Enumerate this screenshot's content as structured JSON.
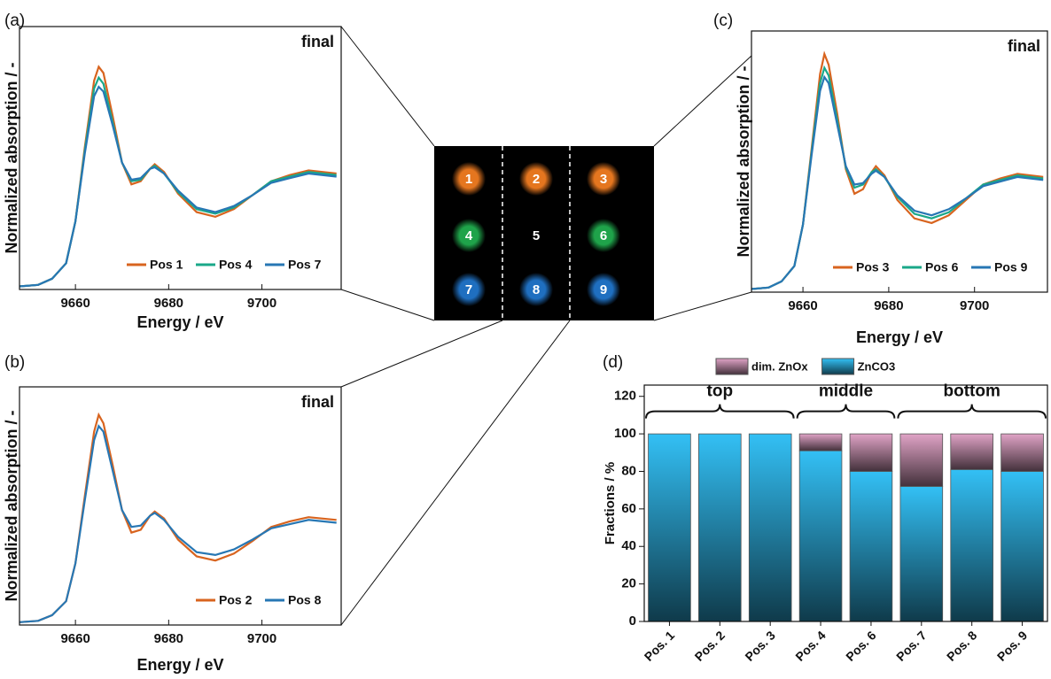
{
  "chart_data": [
    {
      "type": "line",
      "label": "(a)",
      "annotation": "final",
      "x_label": "Energy / eV",
      "y_label": "Normalized absorption / -",
      "x": [
        9648,
        9652,
        9655,
        9658,
        9660,
        9662,
        9664,
        9665,
        9666,
        9668,
        9670,
        9672,
        9674,
        9676,
        9677,
        9679,
        9682,
        9686,
        9690,
        9694,
        9698,
        9702,
        9706,
        9710,
        9716
      ],
      "series": [
        {
          "name": "Pos 1",
          "color": "#d8641f",
          "values": [
            0.02,
            0.03,
            0.07,
            0.17,
            0.44,
            0.92,
            1.35,
            1.44,
            1.4,
            1.12,
            0.82,
            0.68,
            0.7,
            0.78,
            0.81,
            0.76,
            0.62,
            0.5,
            0.47,
            0.52,
            0.61,
            0.7,
            0.74,
            0.77,
            0.75
          ]
        },
        {
          "name": "Pos 4",
          "color": "#1aa889",
          "values": [
            0.02,
            0.03,
            0.07,
            0.17,
            0.44,
            0.9,
            1.3,
            1.37,
            1.33,
            1.08,
            0.82,
            0.7,
            0.71,
            0.78,
            0.8,
            0.75,
            0.63,
            0.52,
            0.49,
            0.53,
            0.61,
            0.7,
            0.73,
            0.76,
            0.74
          ]
        },
        {
          "name": "Pos 7",
          "color": "#2777b4",
          "values": [
            0.02,
            0.03,
            0.07,
            0.17,
            0.44,
            0.88,
            1.25,
            1.31,
            1.28,
            1.06,
            0.82,
            0.71,
            0.72,
            0.78,
            0.79,
            0.75,
            0.64,
            0.53,
            0.5,
            0.54,
            0.61,
            0.69,
            0.72,
            0.75,
            0.73
          ]
        }
      ],
      "xlim": [
        9648,
        9717
      ],
      "ylim": [
        0,
        1.7
      ],
      "xticks": [
        9660,
        9680,
        9700
      ],
      "legend": "lower right"
    },
    {
      "type": "line",
      "label": "(b)",
      "annotation": "final",
      "x_label": "Energy / eV",
      "y_label": "Normalized absorption / -",
      "x": [
        9648,
        9652,
        9655,
        9658,
        9660,
        9662,
        9664,
        9665,
        9666,
        9668,
        9670,
        9672,
        9674,
        9676,
        9677,
        9679,
        9682,
        9686,
        9690,
        9694,
        9698,
        9702,
        9706,
        9710,
        9716
      ],
      "series": [
        {
          "name": "Pos 2",
          "color": "#d8641f",
          "values": [
            0.02,
            0.03,
            0.07,
            0.17,
            0.44,
            0.92,
            1.38,
            1.5,
            1.44,
            1.14,
            0.82,
            0.66,
            0.68,
            0.78,
            0.81,
            0.76,
            0.61,
            0.49,
            0.46,
            0.51,
            0.6,
            0.7,
            0.74,
            0.77,
            0.75
          ]
        },
        {
          "name": "Pos 8",
          "color": "#2777b4",
          "values": [
            0.02,
            0.03,
            0.07,
            0.17,
            0.44,
            0.89,
            1.32,
            1.42,
            1.38,
            1.1,
            0.82,
            0.7,
            0.71,
            0.78,
            0.8,
            0.75,
            0.63,
            0.52,
            0.5,
            0.54,
            0.61,
            0.69,
            0.72,
            0.75,
            0.73
          ]
        }
      ],
      "xlim": [
        9648,
        9717
      ],
      "ylim": [
        0,
        1.7
      ],
      "xticks": [
        9660,
        9680,
        9700
      ],
      "legend": "lower right"
    },
    {
      "type": "line",
      "label": "(c)",
      "annotation": "final",
      "x_label": "Energy / eV",
      "y_label": "Normalized absorption / -",
      "x": [
        9648,
        9652,
        9655,
        9658,
        9660,
        9662,
        9664,
        9665,
        9666,
        9668,
        9670,
        9672,
        9674,
        9676,
        9677,
        9679,
        9682,
        9686,
        9690,
        9694,
        9698,
        9702,
        9706,
        9710,
        9716
      ],
      "series": [
        {
          "name": "Pos 3",
          "color": "#d8641f",
          "values": [
            0.02,
            0.03,
            0.07,
            0.17,
            0.44,
            0.93,
            1.42,
            1.55,
            1.48,
            1.16,
            0.8,
            0.64,
            0.67,
            0.78,
            0.82,
            0.76,
            0.6,
            0.48,
            0.45,
            0.5,
            0.6,
            0.7,
            0.74,
            0.77,
            0.75
          ]
        },
        {
          "name": "Pos 6",
          "color": "#1aa889",
          "values": [
            0.02,
            0.03,
            0.07,
            0.17,
            0.44,
            0.91,
            1.36,
            1.46,
            1.41,
            1.12,
            0.81,
            0.68,
            0.7,
            0.78,
            0.8,
            0.75,
            0.62,
            0.51,
            0.48,
            0.52,
            0.61,
            0.7,
            0.73,
            0.76,
            0.74
          ]
        },
        {
          "name": "Pos 9",
          "color": "#2777b4",
          "values": [
            0.02,
            0.03,
            0.07,
            0.17,
            0.44,
            0.89,
            1.31,
            1.4,
            1.36,
            1.09,
            0.82,
            0.7,
            0.71,
            0.77,
            0.79,
            0.75,
            0.63,
            0.53,
            0.5,
            0.54,
            0.61,
            0.69,
            0.72,
            0.75,
            0.73
          ]
        }
      ],
      "xlim": [
        9648,
        9717
      ],
      "ylim": [
        0,
        1.7
      ],
      "xticks": [
        9660,
        9680,
        9700
      ],
      "legend": "lower right"
    },
    {
      "type": "bar",
      "label": "(d)",
      "y_label": "Fractions / %",
      "stacked": true,
      "categories": [
        "Pos. 1",
        "Pos. 2",
        "Pos. 3",
        "Pos. 4",
        "Pos. 6",
        "Pos. 7",
        "Pos. 8",
        "Pos. 9"
      ],
      "series": [
        {
          "name": "ZnCO3",
          "color": "#33c0f5",
          "values": [
            100,
            100,
            100,
            91,
            80,
            72,
            81,
            80
          ]
        },
        {
          "name": "dim. ZnOx",
          "color": "#e0a3c6",
          "values": [
            0,
            0,
            0,
            9,
            20,
            28,
            19,
            20
          ]
        }
      ],
      "annotations": [
        "top",
        "middle",
        "bottom"
      ],
      "ylim": [
        0,
        126
      ],
      "yticks": [
        0,
        20,
        40,
        60,
        80,
        100,
        120
      ],
      "legend": "top"
    }
  ],
  "diagram": {
    "positions": [
      "1",
      "2",
      "3",
      "4",
      "5",
      "6",
      "7",
      "8",
      "9"
    ]
  }
}
